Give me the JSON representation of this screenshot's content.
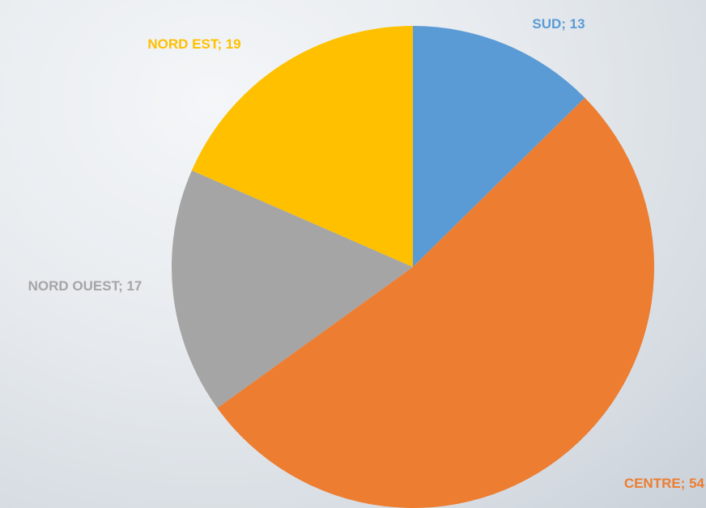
{
  "chart_data": {
    "type": "pie",
    "values": [
      13,
      54,
      17,
      19
    ],
    "value_labels": [
      "SUD; 13",
      "CENTRE; 54",
      "NORD OUEST; 17",
      "NORD EST; 19"
    ],
    "colors": [
      "#5b9bd5",
      "#ed7d31",
      "#a5a5a5",
      "#ffc000"
    ]
  }
}
